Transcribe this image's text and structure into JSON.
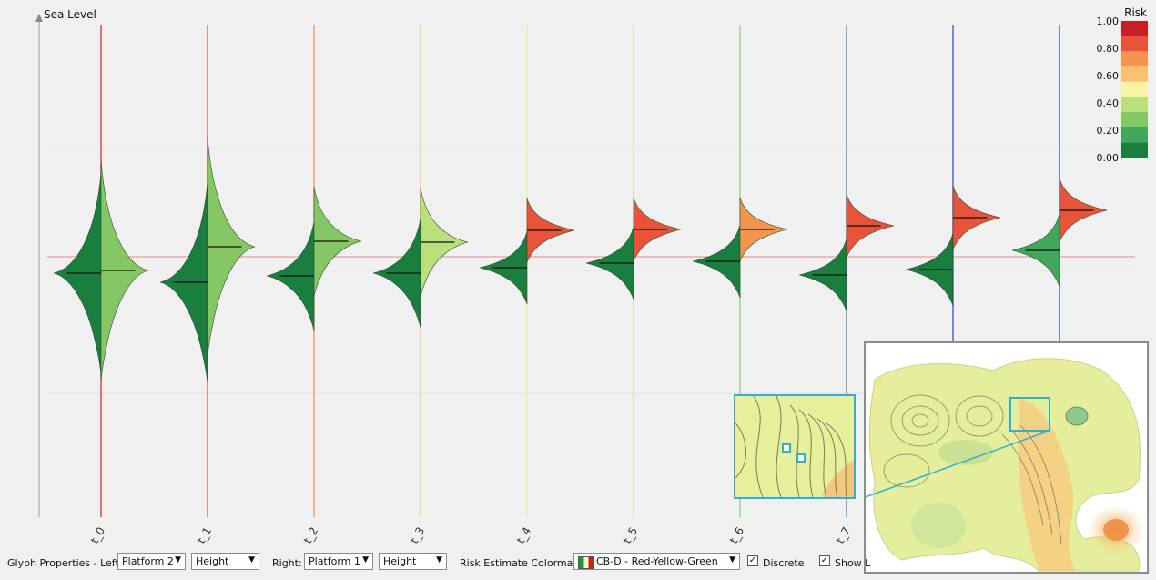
{
  "chart_data": {
    "type": "violin",
    "ylabel": "Sea Level",
    "categories": [
      "t_0",
      "t_1",
      "t_2",
      "t_3",
      "t_4",
      "t_5",
      "t_6",
      "t_7",
      "t_8",
      "t_9"
    ],
    "threshold": 0.0,
    "ylim": [
      -1.6,
      1.0
    ],
    "left_series": {
      "name": "Platform 2",
      "medians": [
        -0.18,
        -0.28,
        -0.21,
        -0.18,
        -0.12,
        -0.07,
        -0.05,
        -0.2,
        -0.14,
        0.07
      ],
      "colors": [
        "#1a7e3e",
        "#1a7e3e",
        "#1a7e3e",
        "#1a7e3e",
        "#1a7e3e",
        "#1a7e3e",
        "#1a7e3e",
        "#1a7e3e",
        "#1a7e3e",
        "#41a85b"
      ]
    },
    "right_series": {
      "name": "Platform 1",
      "medians": [
        -0.15,
        0.11,
        0.17,
        0.16,
        0.29,
        0.3,
        0.3,
        0.34,
        0.43,
        0.51
      ],
      "colors": [
        "#85c665",
        "#85c665",
        "#85c665",
        "#b9e07a",
        "#e8533a",
        "#e8533a",
        "#f5944e",
        "#e8533a",
        "#e8533a",
        "#e8533a"
      ]
    },
    "axis_line_colors": [
      "#d9302b",
      "#e8533a",
      "#f5944e",
      "#fcbf6e",
      "#f7ee98",
      "#c6e290",
      "#90cf80",
      "#3a8bbf",
      "#3b50b0",
      "#3b50b0"
    ],
    "legend": {
      "title": "Risk",
      "ticks": [
        "1.00",
        "0.80",
        "0.60",
        "0.40",
        "0.20",
        "0.00"
      ],
      "colors": [
        "#1a7e3e",
        "#41a85b",
        "#85c665",
        "#b9e07a",
        "#f8f3a5",
        "#fcbf6e",
        "#f5944e",
        "#e8533a",
        "#c71f26"
      ]
    }
  },
  "controls": {
    "glyph_left_label": "Glyph Properties - Left:",
    "left_platform": "Platform 2",
    "left_property": "Height",
    "right_label": "Right:",
    "right_platform": "Platform 1",
    "right_property": "Height",
    "colormap_label": "Risk Estimate Colormap:",
    "colormap_value": "CB-D - Red-Yellow-Green",
    "discrete_label": "Discrete",
    "show_label": "Show L"
  }
}
